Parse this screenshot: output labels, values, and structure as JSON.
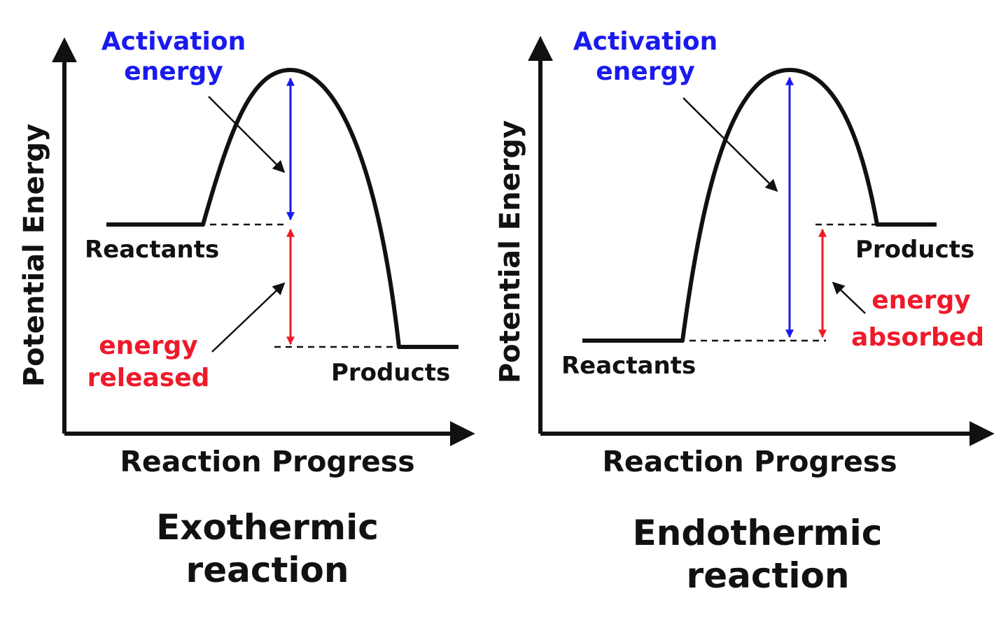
{
  "colors": {
    "axis": "#111111",
    "activation": "#1a1aee",
    "enthalpy": "#ee1a2a"
  },
  "exothermic": {
    "y_axis_label": "Potential Energy",
    "x_axis_label": "Reaction Progress",
    "activation_label": [
      "Activation",
      "energy"
    ],
    "reactants_label": "Reactants",
    "products_label": "Products",
    "energy_change_label": [
      "energy",
      "released"
    ],
    "caption": [
      "Exothermic",
      "reaction"
    ]
  },
  "endothermic": {
    "y_axis_label": "Potential Energy",
    "x_axis_label": "Reaction Progress",
    "activation_label": [
      "Activation",
      "energy"
    ],
    "reactants_label": "Reactants",
    "products_label": "Products",
    "energy_change_label": [
      "energy",
      "absorbed"
    ],
    "caption": [
      "Endothermic",
      "reaction"
    ]
  }
}
